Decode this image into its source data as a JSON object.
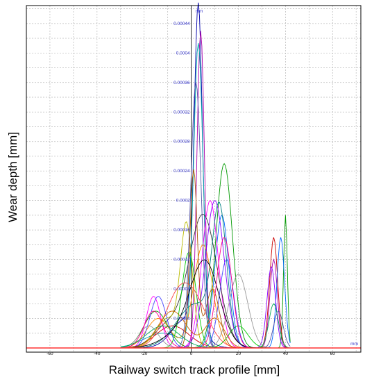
{
  "chart_data": {
    "type": "line",
    "title": "",
    "xlabel": "Railway switch track profile [mm]",
    "ylabel": "Wear depth [mm]",
    "x_unit": "mm",
    "y_unit": "mm",
    "xlim": [
      -70,
      72
    ],
    "ylim": [
      0,
      0.00047
    ],
    "x_ticks": [
      -60,
      -40,
      -20,
      0,
      20,
      40,
      60
    ],
    "y_ticks": [
      4e-05,
      8e-05,
      0.00012,
      0.00016,
      0.0002,
      0.00024,
      0.00028,
      0.00032,
      0.00036,
      0.0004,
      0.00044
    ],
    "x_tick_labels": [
      "-60",
      "-40",
      "-20",
      "0",
      "20",
      "40",
      "60"
    ],
    "y_tick_labels": [
      "0.00004",
      "0.00008",
      "0.00012",
      "0.00016",
      "0.0002",
      "0.00024",
      "0.00028",
      "0.00032",
      "0.00036",
      "0.0004",
      "0.00044"
    ],
    "grid": true,
    "legend": "none",
    "series": [
      {
        "color": "#0000aa",
        "peaks": [
          [
            3,
            0.00044,
            1.8
          ],
          [
            -2,
            4e-05,
            6
          ]
        ]
      },
      {
        "color": "#aa00aa",
        "peaks": [
          [
            4,
            0.00043,
            1.6
          ],
          [
            35,
            0.00012,
            1.6
          ]
        ]
      },
      {
        "color": "#009900",
        "peaks": [
          [
            14,
            0.00025,
            3.5
          ],
          [
            40,
            0.00018,
            0.8
          ],
          [
            -15,
            5e-05,
            5
          ]
        ]
      },
      {
        "color": "#00aaaa",
        "peaks": [
          [
            3,
            0.00041,
            2.0
          ],
          [
            -12,
            2e-05,
            8
          ]
        ]
      },
      {
        "color": "#cc0000",
        "peaks": [
          [
            35,
            0.00015,
            1.7
          ],
          [
            -8,
            3e-05,
            7
          ]
        ]
      },
      {
        "color": "#0066ff",
        "peaks": [
          [
            38,
            0.00015,
            1.6
          ],
          [
            13,
            0.00018,
            3
          ]
        ]
      },
      {
        "color": "#ff00ff",
        "peaks": [
          [
            8,
            0.0002,
            3.5
          ],
          [
            -16,
            7e-05,
            3
          ]
        ]
      },
      {
        "color": "#333333",
        "peaks": [
          [
            5,
            0.00018,
            6
          ],
          [
            -10,
            3e-05,
            6
          ]
        ]
      },
      {
        "color": "#bbbb00",
        "peaks": [
          [
            -2,
            0.00016,
            2.5
          ],
          [
            -10,
            4e-05,
            5
          ]
        ]
      },
      {
        "color": "#008080",
        "peaks": [
          [
            12,
            0.00017,
            3
          ],
          [
            2,
            6e-05,
            8
          ]
        ]
      },
      {
        "color": "#ff8800",
        "peaks": [
          [
            5,
            0.00014,
            4
          ],
          [
            -14,
            4e-05,
            5
          ]
        ]
      },
      {
        "color": "#00cc00",
        "peaks": [
          [
            -1,
            0.00013,
            3
          ],
          [
            20,
            3e-05,
            4
          ]
        ]
      },
      {
        "color": "#8800ff",
        "peaks": [
          [
            10,
            0.0002,
            4
          ],
          [
            34,
            0.00011,
            1.8
          ]
        ]
      },
      {
        "color": "#ff4444",
        "peaks": [
          [
            -6,
            6e-05,
            6
          ],
          [
            2,
            5e-05,
            6
          ]
        ]
      },
      {
        "color": "#4444ff",
        "peaks": [
          [
            -14,
            7e-05,
            3.5
          ],
          [
            15,
            0.00012,
            3
          ]
        ]
      },
      {
        "color": "#999999",
        "peaks": [
          [
            20,
            0.0001,
            4
          ],
          [
            -18,
            3e-05,
            4
          ]
        ]
      },
      {
        "color": "#aa5500",
        "peaks": [
          [
            1,
            0.00024,
            1.6
          ],
          [
            9,
            8e-05,
            3
          ]
        ]
      },
      {
        "color": "#000000",
        "peaks": [
          [
            6,
            0.00011,
            6
          ],
          [
            -4,
            2e-05,
            8
          ]
        ]
      },
      {
        "color": "#ff0088",
        "peaks": [
          [
            14,
            0.00015,
            3.2
          ],
          [
            -16,
            5e-05,
            4
          ]
        ]
      },
      {
        "color": "#00aa55",
        "peaks": [
          [
            -12,
            3e-05,
            7
          ],
          [
            35,
            6e-05,
            2
          ]
        ]
      },
      {
        "color": "#5555aa",
        "peaks": [
          [
            2,
            0.00036,
            2.2
          ],
          [
            37,
            5e-05,
            2
          ]
        ]
      },
      {
        "color": "#cc6600",
        "peaks": [
          [
            -8,
            5e-05,
            6
          ],
          [
            10,
            4e-05,
            4
          ]
        ]
      }
    ],
    "baseline_color": "#ff3333"
  }
}
